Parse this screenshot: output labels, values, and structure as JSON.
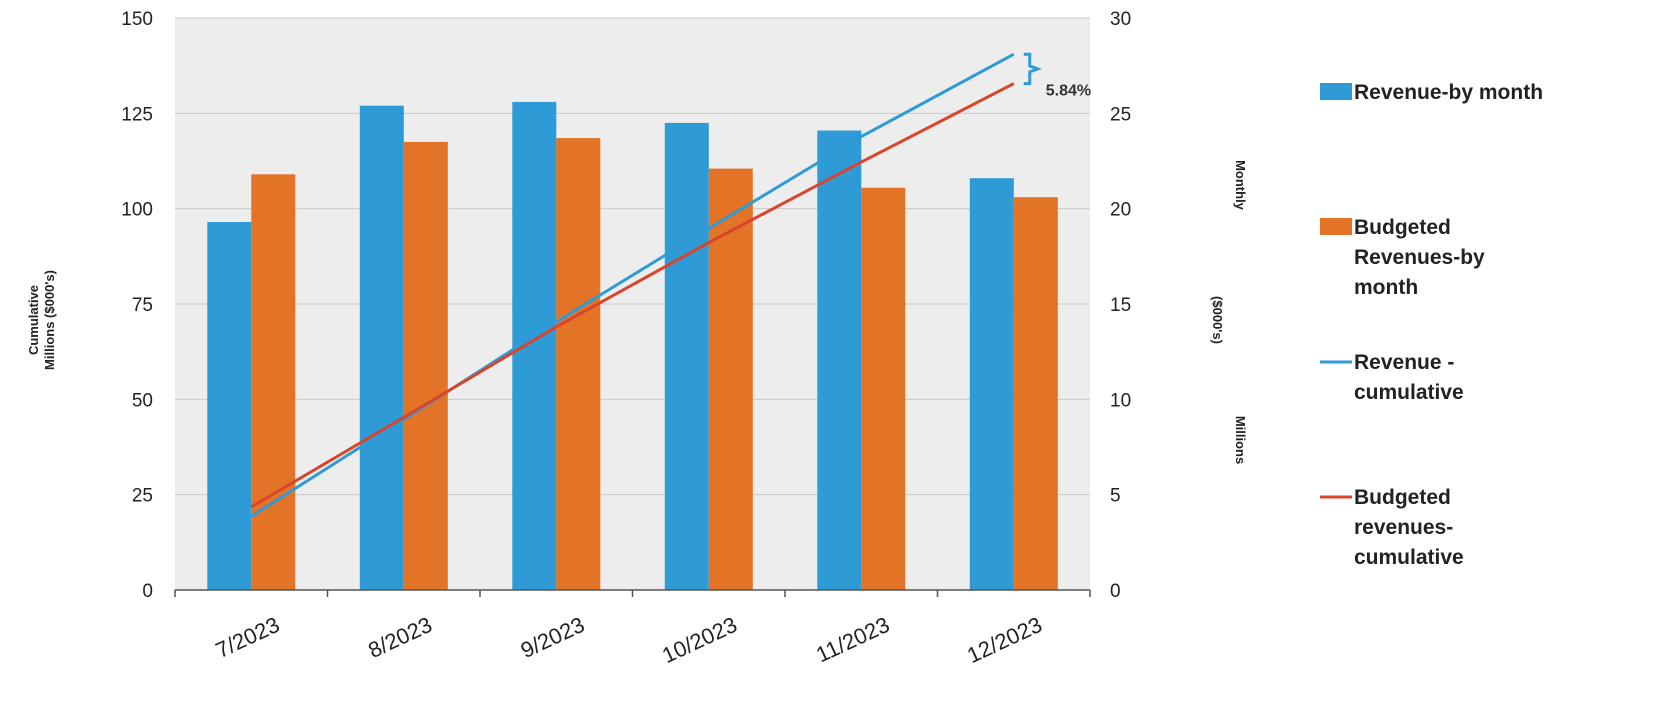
{
  "chart_data": {
    "type": "bar",
    "categories": [
      "7/2023",
      "8/2023",
      "9/2023",
      "10/2023",
      "11/2023",
      "12/2023"
    ],
    "y_left": {
      "label_lines": [
        "Cumulative",
        "Millions ($000's)"
      ],
      "ylim": [
        0,
        150
      ],
      "ticks": [
        0,
        25,
        50,
        75,
        100,
        125,
        150
      ]
    },
    "y_right": {
      "label_parts": [
        "Monthly",
        "($000's)",
        "Millions"
      ],
      "ylim": [
        0,
        30
      ],
      "ticks": [
        0,
        5,
        10,
        15,
        20,
        25,
        30
      ]
    },
    "series": [
      {
        "name": "Revenue-by month",
        "kind": "bar",
        "axis": "right",
        "color": "#2e9bd6",
        "values": [
          19.3,
          25.4,
          25.6,
          24.5,
          24.1,
          21.6
        ]
      },
      {
        "name": "Budgeted Revenues-by month",
        "kind": "bar",
        "axis": "right",
        "color": "#e37427",
        "values": [
          21.8,
          23.5,
          23.7,
          22.1,
          21.1,
          20.6
        ]
      },
      {
        "name": "Revenue - cumulative",
        "kind": "line",
        "axis": "left",
        "color": "#2e9bd6",
        "values": [
          19.3,
          44.7,
          70.3,
          94.8,
          118.9,
          140.5
        ]
      },
      {
        "name": "Budgeted revenues-cumulative",
        "kind": "line",
        "axis": "left",
        "color": "#d9442c",
        "values": [
          21.8,
          45.3,
          69.0,
          91.1,
          112.2,
          132.8
        ]
      }
    ],
    "legend": {
      "placement": "right",
      "entries": [
        {
          "kind": "bar",
          "color": "#2e9bd6",
          "lines": [
            "Revenue-by month"
          ]
        },
        {
          "kind": "bar",
          "color": "#e37427",
          "lines": [
            "Budgeted",
            "Revenues-by",
            "month"
          ]
        },
        {
          "kind": "line",
          "color": "#2e9bd6",
          "lines": [
            "Revenue -",
            "cumulative"
          ]
        },
        {
          "kind": "line",
          "color": "#d9442c",
          "lines": [
            "Budgeted",
            "revenues-",
            "cumulative"
          ]
        }
      ]
    },
    "annotation": {
      "text": "5.84%",
      "between": [
        132.8,
        140.5
      ]
    },
    "grid": true,
    "plot_background": "#ededed"
  }
}
